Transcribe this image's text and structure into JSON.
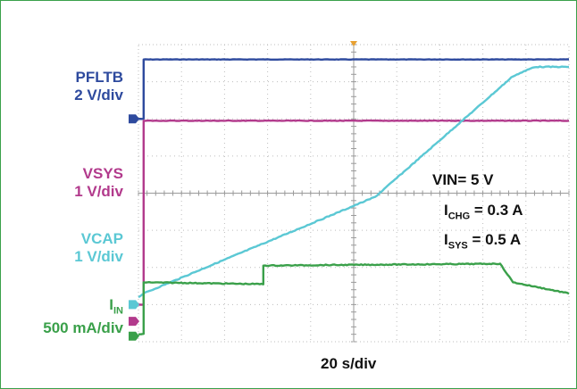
{
  "chart_data": {
    "type": "line",
    "xlabel": "20 s/div",
    "grid": true,
    "x_divisions": 10,
    "y_divisions": 8,
    "annotations": [
      {
        "name": "VIN",
        "value": "= 5 V"
      },
      {
        "name": "I",
        "sub": "CHG",
        "value": " = 0.3 A"
      },
      {
        "name": "I",
        "sub": "SYS",
        "value": " = 0.5 A"
      }
    ],
    "channel_labels": [
      {
        "name": "PFLTB",
        "scale": "2 V/div",
        "color": "#2e4a9e"
      },
      {
        "name": "VSYS",
        "scale": "1 V/div",
        "color": "#b23a8c"
      },
      {
        "name": "VCAP",
        "scale": "1 V/div",
        "color": "#5bc8d4"
      },
      {
        "name": "I",
        "sub": "IN",
        "scale": "500 mA/div",
        "color": "#3aa04a"
      }
    ],
    "series": [
      {
        "name": "PFLTB",
        "unit": "div",
        "x": [
          0,
          0.12,
          0.12,
          10
        ],
        "y": [
          6.0,
          6.0,
          7.6,
          7.6
        ]
      },
      {
        "name": "VSYS",
        "unit": "div",
        "x": [
          0,
          0.12,
          0.12,
          10
        ],
        "y": [
          1.0,
          1.0,
          5.95,
          5.95
        ]
      },
      {
        "name": "VCAP",
        "unit": "div",
        "x": [
          0,
          0.12,
          5.5,
          8.7,
          9.2,
          10
        ],
        "y": [
          1.2,
          1.3,
          3.9,
          7.15,
          7.4,
          7.4
        ]
      },
      {
        "name": "IN",
        "unit": "div",
        "x": [
          0,
          0.12,
          0.12,
          2.9,
          2.9,
          8.4,
          8.7,
          10
        ],
        "y": [
          0.2,
          0.2,
          1.6,
          1.55,
          2.05,
          2.1,
          1.6,
          1.3
        ]
      }
    ]
  }
}
